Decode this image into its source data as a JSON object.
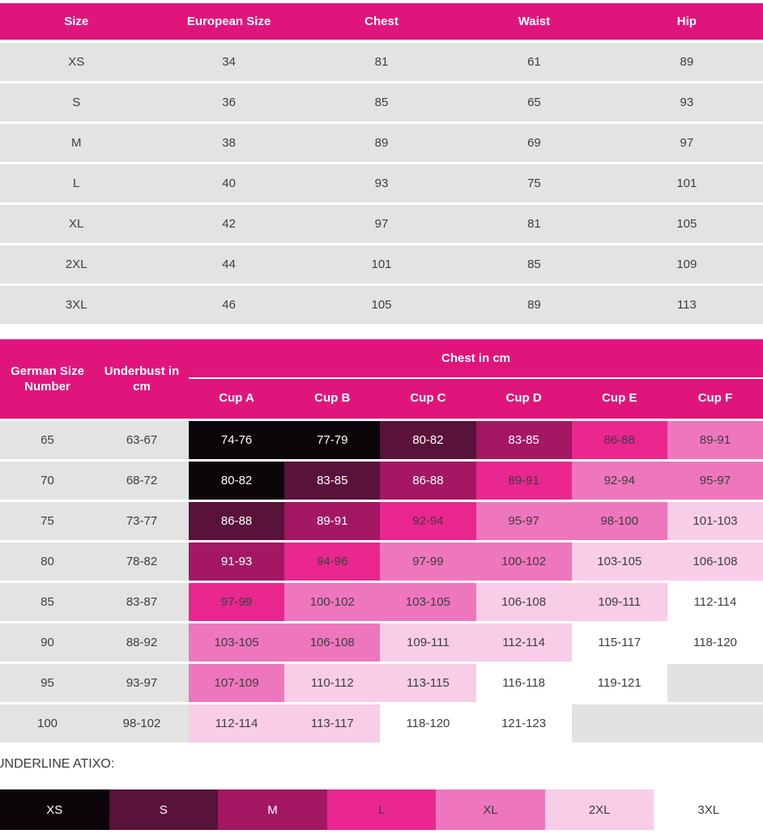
{
  "colors": {
    "header_bg": "#e0157c",
    "header_text": "#ffffff",
    "row_bg": "#e3e3e3",
    "text_dark": "#3d3d3d"
  },
  "palette": {
    "XS": {
      "bg": "#0c0509",
      "fg": "#ffffff"
    },
    "S": {
      "bg": "#591239",
      "fg": "#ffffff"
    },
    "M": {
      "bg": "#a31763",
      "fg": "#ffffff"
    },
    "L": {
      "bg": "#e9278f",
      "fg": "#3d3d3d"
    },
    "XL": {
      "bg": "#ee76bd",
      "fg": "#3d3d3d"
    },
    "2XL": {
      "bg": "#f8cde8",
      "fg": "#3d3d3d"
    },
    "3XL": {
      "bg": "#ffffff",
      "fg": "#3d3d3d"
    },
    "EMPTY": {
      "bg": "#e2e2e2",
      "fg": "#3d3d3d"
    }
  },
  "size_table": {
    "headers": [
      "Size",
      "European Size",
      "Chest",
      "Waist",
      "Hip"
    ],
    "rows": [
      [
        "XS",
        "34",
        "81",
        "61",
        "89"
      ],
      [
        "S",
        "36",
        "85",
        "65",
        "93"
      ],
      [
        "M",
        "38",
        "89",
        "69",
        "97"
      ],
      [
        "L",
        "40",
        "93",
        "75",
        "101"
      ],
      [
        "XL",
        "42",
        "97",
        "81",
        "105"
      ],
      [
        "2XL",
        "44",
        "101",
        "85",
        "109"
      ],
      [
        "3XL",
        "46",
        "105",
        "89",
        "113"
      ]
    ]
  },
  "bra_table": {
    "col1_header": "German Size Number",
    "col2_header": "Underbust in cm",
    "group_header": "Chest in cm",
    "cup_headers": [
      "Cup A",
      "Cup B",
      "Cup C",
      "Cup D",
      "Cup E",
      "Cup F"
    ],
    "rows": [
      {
        "german_size": "65",
        "underbust": "63-67",
        "cups": [
          {
            "text": "74-76",
            "size": "XS"
          },
          {
            "text": "77-79",
            "size": "XS"
          },
          {
            "text": "80-82",
            "size": "S"
          },
          {
            "text": "83-85",
            "size": "M"
          },
          {
            "text": "86-88",
            "size": "L"
          },
          {
            "text": "89-91",
            "size": "XL"
          }
        ]
      },
      {
        "german_size": "70",
        "underbust": "68-72",
        "cups": [
          {
            "text": "80-82",
            "size": "XS"
          },
          {
            "text": "83-85",
            "size": "S"
          },
          {
            "text": "86-88",
            "size": "M"
          },
          {
            "text": "89-91",
            "size": "L"
          },
          {
            "text": "92-94",
            "size": "XL"
          },
          {
            "text": "95-97",
            "size": "XL"
          }
        ]
      },
      {
        "german_size": "75",
        "underbust": "73-77",
        "cups": [
          {
            "text": "86-88",
            "size": "S"
          },
          {
            "text": "89-91",
            "size": "M"
          },
          {
            "text": "92-94",
            "size": "L"
          },
          {
            "text": "95-97",
            "size": "XL"
          },
          {
            "text": "98-100",
            "size": "XL"
          },
          {
            "text": "101-103",
            "size": "2XL"
          }
        ]
      },
      {
        "german_size": "80",
        "underbust": "78-82",
        "cups": [
          {
            "text": "91-93",
            "size": "M"
          },
          {
            "text": "94-96",
            "size": "L"
          },
          {
            "text": "97-99",
            "size": "XL"
          },
          {
            "text": "100-102",
            "size": "XL"
          },
          {
            "text": "103-105",
            "size": "2XL"
          },
          {
            "text": "106-108",
            "size": "2XL"
          }
        ]
      },
      {
        "german_size": "85",
        "underbust": "83-87",
        "cups": [
          {
            "text": "97-99",
            "size": "L"
          },
          {
            "text": "100-102",
            "size": "XL"
          },
          {
            "text": "103-105",
            "size": "XL"
          },
          {
            "text": "106-108",
            "size": "2XL"
          },
          {
            "text": "109-111",
            "size": "2XL"
          },
          {
            "text": "112-114",
            "size": "3XL"
          }
        ]
      },
      {
        "german_size": "90",
        "underbust": "88-92",
        "cups": [
          {
            "text": "103-105",
            "size": "XL"
          },
          {
            "text": "106-108",
            "size": "XL"
          },
          {
            "text": "109-111",
            "size": "2XL"
          },
          {
            "text": "112-114",
            "size": "2XL"
          },
          {
            "text": "115-117",
            "size": "3XL"
          },
          {
            "text": "118-120",
            "size": "3XL"
          }
        ]
      },
      {
        "german_size": "95",
        "underbust": "93-97",
        "cups": [
          {
            "text": "107-109",
            "size": "XL"
          },
          {
            "text": "110-112",
            "size": "2XL"
          },
          {
            "text": "113-115",
            "size": "2XL"
          },
          {
            "text": "116-118",
            "size": "3XL"
          },
          {
            "text": "119-121",
            "size": "3XL"
          },
          {
            "text": "",
            "size": "EMPTY"
          }
        ]
      },
      {
        "german_size": "100",
        "underbust": "98-102",
        "cups": [
          {
            "text": "112-114",
            "size": "2XL"
          },
          {
            "text": "113-117",
            "size": "2XL"
          },
          {
            "text": "118-120",
            "size": "3XL"
          },
          {
            "text": "121-123",
            "size": "3XL"
          },
          {
            "text": "",
            "size": "EMPTY"
          },
          {
            "text": "",
            "size": "EMPTY"
          }
        ]
      }
    ]
  },
  "legend": {
    "label": "UNDERLINE ATIXO:",
    "items": [
      {
        "text": "XS",
        "size": "XS"
      },
      {
        "text": "S",
        "size": "S"
      },
      {
        "text": "M",
        "size": "M"
      },
      {
        "text": "L",
        "size": "L"
      },
      {
        "text": "XL",
        "size": "XL"
      },
      {
        "text": "2XL",
        "size": "2XL"
      },
      {
        "text": "3XL",
        "size": "3XL"
      }
    ]
  }
}
